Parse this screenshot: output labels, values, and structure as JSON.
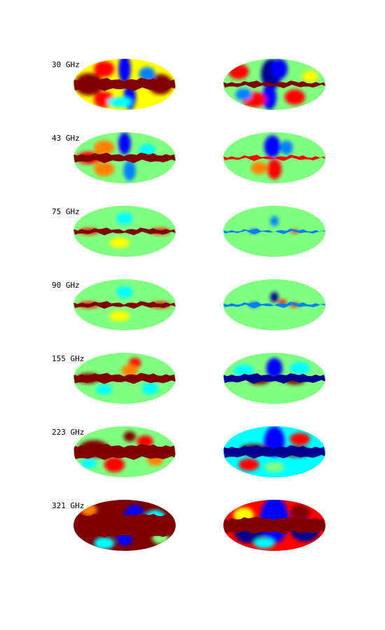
{
  "figure": {
    "frequencies": [
      "30 GHz",
      "43 GHz",
      "75 GHz",
      "90 GHz",
      "155 GHz",
      "223 GHz",
      "321 GHz"
    ],
    "map_columns": 2,
    "colormap": [
      "#00008f",
      "#0000ff",
      "#0080ff",
      "#00ffff",
      "#80ff80",
      "#ffff00",
      "#ff8000",
      "#ff0000",
      "#800000"
    ],
    "background_color": "#ffffff"
  }
}
